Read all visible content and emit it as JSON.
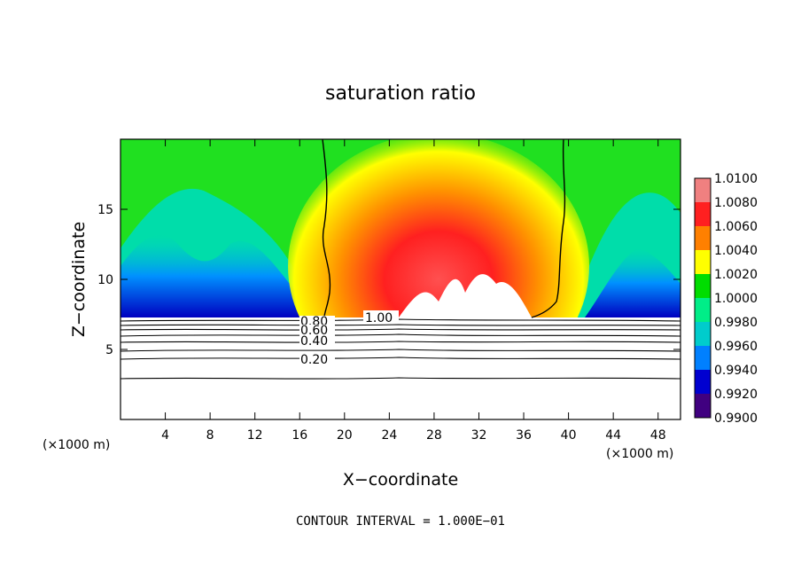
{
  "chart_data": {
    "type": "contour",
    "title": "saturation ratio",
    "xlabel": "X−coordinate",
    "ylabel": "Z−coordinate",
    "x_unit_left": "(×1000 m)",
    "x_unit_right": "(×1000 m)",
    "xlim": [
      0,
      50
    ],
    "ylim": [
      0,
      20
    ],
    "x_ticks": [
      4,
      8,
      12,
      16,
      20,
      24,
      28,
      32,
      36,
      40,
      44,
      48
    ],
    "y_ticks": [
      5,
      10,
      15
    ],
    "colorbar": {
      "levels": [
        "1.0100",
        "1.0080",
        "1.0060",
        "1.0040",
        "1.0020",
        "1.0000",
        "0.9980",
        "0.9960",
        "0.9940",
        "0.9920",
        "0.9900"
      ],
      "colors": [
        "#f08080",
        "#ff2020",
        "#ff8000",
        "#ffff00",
        "#00dd00",
        "#00ee88",
        "#00cccc",
        "#0080ff",
        "#0000d0",
        "#400080"
      ]
    },
    "contour_labels": [
      "1.00",
      "0.80",
      "0.60",
      "0.40",
      "0.20"
    ],
    "contour_interval": "CONTOUR INTERVAL = 1.000E−01"
  }
}
